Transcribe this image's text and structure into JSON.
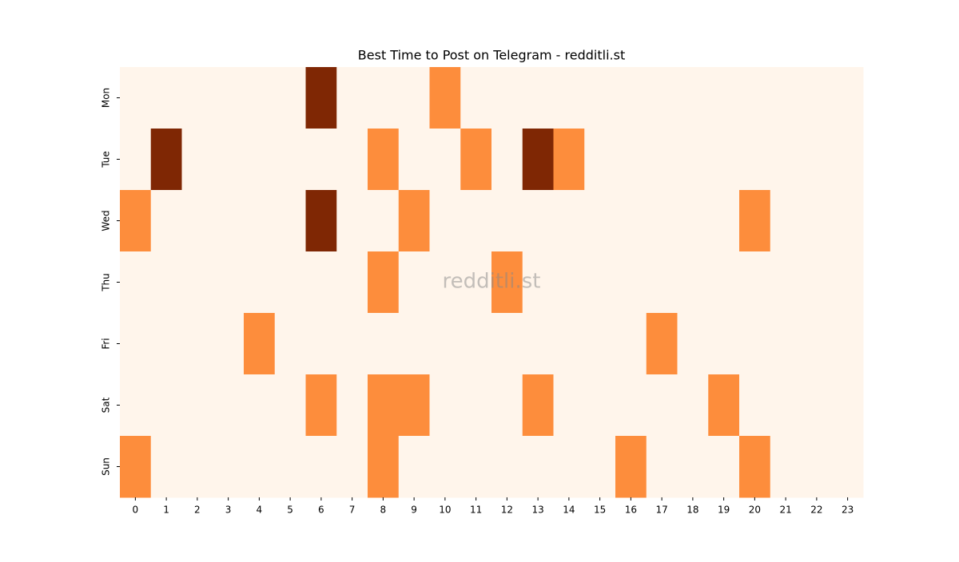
{
  "chart_data": {
    "type": "heatmap",
    "title": "Best Time to Post on Telegram - redditli.st",
    "x": [
      0,
      1,
      2,
      3,
      4,
      5,
      6,
      7,
      8,
      9,
      10,
      11,
      12,
      13,
      14,
      15,
      16,
      17,
      18,
      19,
      20,
      21,
      22,
      23
    ],
    "y": [
      "Mon",
      "Tue",
      "Wed",
      "Thu",
      "Fri",
      "Sat",
      "Sun"
    ],
    "values": [
      [
        0,
        0,
        0,
        0,
        0,
        0,
        2,
        0,
        0,
        0,
        1,
        0,
        0,
        0,
        0,
        0,
        0,
        0,
        0,
        0,
        0,
        0,
        0,
        0
      ],
      [
        0,
        2,
        0,
        0,
        0,
        0,
        0,
        0,
        1,
        0,
        0,
        1,
        0,
        2,
        1,
        0,
        0,
        0,
        0,
        0,
        0,
        0,
        0,
        0
      ],
      [
        1,
        0,
        0,
        0,
        0,
        0,
        2,
        0,
        0,
        1,
        0,
        0,
        0,
        0,
        0,
        0,
        0,
        0,
        0,
        0,
        1,
        0,
        0,
        0
      ],
      [
        0,
        0,
        0,
        0,
        0,
        0,
        0,
        0,
        1,
        0,
        0,
        0,
        1,
        0,
        0,
        0,
        0,
        0,
        0,
        0,
        0,
        0,
        0,
        0
      ],
      [
        0,
        0,
        0,
        0,
        1,
        0,
        0,
        0,
        0,
        0,
        0,
        0,
        0,
        0,
        0,
        0,
        0,
        1,
        0,
        0,
        0,
        0,
        0,
        0
      ],
      [
        0,
        0,
        0,
        0,
        0,
        0,
        1,
        0,
        1,
        1,
        0,
        0,
        0,
        1,
        0,
        0,
        0,
        0,
        0,
        1,
        0,
        0,
        0,
        0
      ],
      [
        1,
        0,
        0,
        0,
        0,
        0,
        0,
        0,
        1,
        0,
        0,
        0,
        0,
        0,
        0,
        0,
        1,
        0,
        0,
        0,
        1,
        0,
        0,
        0
      ]
    ],
    "palette": [
      "#fff5eb",
      "#fd8d3c",
      "#7f2704"
    ],
    "watermark": "redditli.st"
  }
}
